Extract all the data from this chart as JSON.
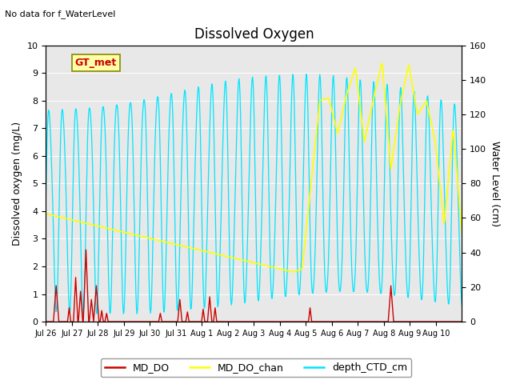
{
  "title": "Dissolved Oxygen",
  "top_left_text": "No data for f_WaterLevel",
  "legend_box_text": "GT_met",
  "ylabel_left": "Dissolved oxygen (mg/L)",
  "ylabel_right": "Water Level (cm)",
  "ylim_left": [
    0,
    10
  ],
  "ylim_right": [
    0,
    160
  ],
  "background_color": "#ffffff",
  "plot_bg_color": "#e8e8e8",
  "line_colors": {
    "MD_DO": "#cc0000",
    "MD_DO_chan": "#ffff00",
    "depth_CTD_cm": "#00e5ff"
  },
  "legend_labels": [
    "MD_DO",
    "MD_DO_chan",
    "depth_CTD_cm"
  ],
  "xtick_labels": [
    "Jul 26",
    "Jul 27",
    "Jul 28",
    "Jul 29",
    "Jul 30",
    "Jul 31",
    "Aug 1",
    "Aug 2",
    "Aug 3",
    "Aug 4",
    "Aug 5",
    "Aug 6",
    "Aug 7",
    "Aug 8",
    "Aug 9",
    "Aug 10"
  ],
  "yticks_left": [
    0.0,
    1.0,
    2.0,
    3.0,
    4.0,
    5.0,
    6.0,
    7.0,
    8.0,
    9.0,
    10.0
  ],
  "yticks_right": [
    0,
    20,
    40,
    60,
    80,
    100,
    120,
    140,
    160
  ]
}
